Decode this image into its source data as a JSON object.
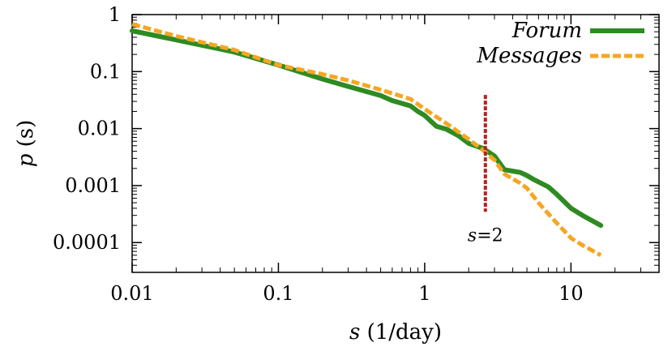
{
  "chart_data": {
    "type": "line",
    "title": "",
    "xlabel_var": "s",
    "xlabel_unit": " (1/day)",
    "ylabel_var": "p",
    "ylabel_arg": " (s)",
    "x_scale": "log",
    "y_scale": "log",
    "xlim": [
      0.01,
      40
    ],
    "ylim": [
      3e-05,
      1
    ],
    "x_ticks": [
      0.01,
      0.1,
      1,
      10
    ],
    "x_tick_labels": [
      "0.01",
      "0.1",
      "1",
      "10"
    ],
    "y_ticks": [
      1,
      0.1,
      0.01,
      0.001,
      0.0001
    ],
    "y_tick_labels": [
      "1",
      "0.1",
      "0.01",
      "0.001",
      "0.0001"
    ],
    "grid": false,
    "legend_position": "top-right",
    "series": [
      {
        "name": "Forum",
        "color": "#2e8b22",
        "style": "solid",
        "x": [
          0.01,
          0.02,
          0.05,
          0.1,
          0.2,
          0.3,
          0.5,
          0.6,
          0.8,
          0.9,
          1.0,
          1.2,
          1.4,
          1.7,
          2.0,
          2.5,
          3.0,
          3.5,
          4.5,
          5.0,
          5.5,
          7.0,
          8.0,
          10,
          12,
          16
        ],
        "y": [
          0.52,
          0.36,
          0.22,
          0.13,
          0.074,
          0.055,
          0.038,
          0.031,
          0.025,
          0.02,
          0.017,
          0.011,
          0.0098,
          0.0075,
          0.0055,
          0.0045,
          0.0033,
          0.0019,
          0.0017,
          0.0015,
          0.0013,
          0.00095,
          0.0007,
          0.0004,
          0.0003,
          0.0002
        ]
      },
      {
        "name": "Messages",
        "color": "#f5a623",
        "style": "dashed",
        "x": [
          0.01,
          0.02,
          0.05,
          0.1,
          0.2,
          0.3,
          0.5,
          0.8,
          1.0,
          1.5,
          2.0,
          2.5,
          3.0,
          3.5,
          4.5,
          5.0,
          6.0,
          7.0,
          8.0,
          9.0,
          10,
          12,
          16
        ],
        "y": [
          0.68,
          0.42,
          0.24,
          0.13,
          0.09,
          0.07,
          0.048,
          0.033,
          0.022,
          0.011,
          0.0065,
          0.0042,
          0.0028,
          0.0016,
          0.0011,
          0.0009,
          0.0005,
          0.00032,
          0.00022,
          0.00016,
          0.00012,
          9e-05,
          6e-05
        ]
      }
    ],
    "annotations": [
      {
        "var": "s",
        "text": "=2",
        "x": 2.6,
        "line_ylim": [
          0.00025,
          0.03
        ],
        "color": "#b22222",
        "style": "dashed"
      }
    ]
  }
}
